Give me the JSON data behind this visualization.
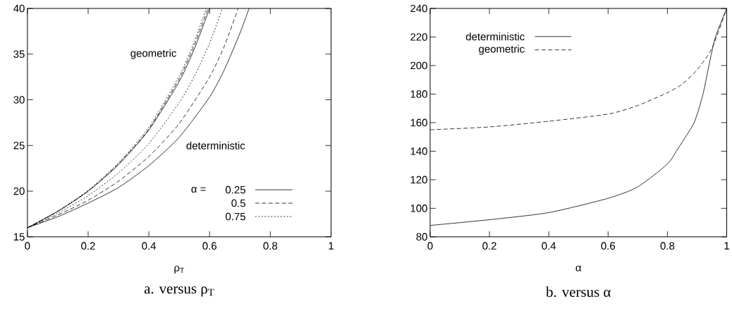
{
  "chart_data": [
    {
      "type": "line",
      "title": "a.  versus ρ$_{T}$",
      "xlabel": "ρ$_{T}$",
      "xlim": [
        0,
        1
      ],
      "ylim": [
        15,
        40
      ],
      "xticks": [
        0,
        0.2,
        0.4,
        0.6,
        0.8,
        1
      ],
      "yticks": [
        15,
        20,
        25,
        30,
        35,
        40
      ],
      "legend": "bottom right",
      "legend_title": "α =",
      "annotations": [
        "geometric",
        "deterministic"
      ],
      "series": [
        {
          "name": "0.25",
          "color": "#000000",
          "line_style": "solid",
          "x": [
            0,
            0.1,
            0.2,
            0.3,
            0.4,
            0.5,
            0.6,
            0.65,
            0.7,
            0.73
          ],
          "values": [
            16,
            17.2,
            18.7,
            20.4,
            22.8,
            25.9,
            30.3,
            33.4,
            37.3,
            40
          ]
        },
        {
          "name": "0.5",
          "color": "#000000",
          "line_style": "dashed",
          "x": [
            0,
            0.1,
            0.2,
            0.3,
            0.4,
            0.5,
            0.6,
            0.65,
            0.694
          ],
          "values": [
            16,
            17.4,
            19,
            21.1,
            23.8,
            27.4,
            32.5,
            36,
            40
          ]
        },
        {
          "name": "0.75",
          "color": "#000000",
          "line_style": "dotted",
          "x": [
            0,
            0.1,
            0.2,
            0.3,
            0.4,
            0.5,
            0.55,
            0.6,
            0.642
          ],
          "values": [
            16,
            17.6,
            19.5,
            22,
            25.2,
            29.7,
            32.6,
            36.2,
            40
          ]
        },
        {
          "color": "#000000",
          "line_style": "solid",
          "x": [
            0,
            0.1,
            0.2,
            0.3,
            0.4,
            0.5,
            0.55,
            0.6
          ],
          "values": [
            16,
            17.8,
            20,
            22.9,
            26.7,
            32,
            35.6,
            40
          ]
        },
        {
          "color": "#000000",
          "line_style": "dashed",
          "x": [
            0,
            0.1,
            0.2,
            0.3,
            0.4,
            0.5,
            0.55,
            0.595
          ],
          "values": [
            16,
            17.8,
            20,
            23,
            26.8,
            32.3,
            36,
            40
          ]
        },
        {
          "color": "#000000",
          "line_style": "dotted",
          "x": [
            0,
            0.1,
            0.2,
            0.3,
            0.4,
            0.5,
            0.55,
            0.589
          ],
          "values": [
            16,
            17.8,
            20.1,
            23.1,
            27,
            32.6,
            36.4,
            40
          ]
        }
      ]
    },
    {
      "type": "line",
      "title": "b.  versus α",
      "xlabel": "α",
      "xlim": [
        0,
        1
      ],
      "ylim": [
        80,
        240
      ],
      "xticks": [
        0,
        0.2,
        0.4,
        0.6,
        0.8,
        1
      ],
      "yticks": [
        80,
        100,
        120,
        140,
        160,
        180,
        200,
        220,
        240
      ],
      "legend": "top left",
      "series": [
        {
          "name": "deterministic",
          "color": "#000000",
          "line_style": "solid",
          "x": [
            0,
            0.2,
            0.4,
            0.6,
            0.7,
            0.8,
            0.83,
            0.89,
            0.92,
            0.94,
            0.962,
            1
          ],
          "values": [
            88,
            92,
            97,
            107,
            115,
            131,
            140,
            160,
            180,
            200,
            220,
            240
          ]
        },
        {
          "name": "geometric",
          "color": "#000000",
          "line_style": "dashed",
          "x": [
            0,
            0.2,
            0.4,
            0.6,
            0.7,
            0.8,
            0.85,
            0.9,
            0.95,
            1
          ],
          "values": [
            155,
            157,
            161,
            166,
            172,
            181,
            187,
            197,
            212,
            240
          ]
        }
      ]
    }
  ]
}
